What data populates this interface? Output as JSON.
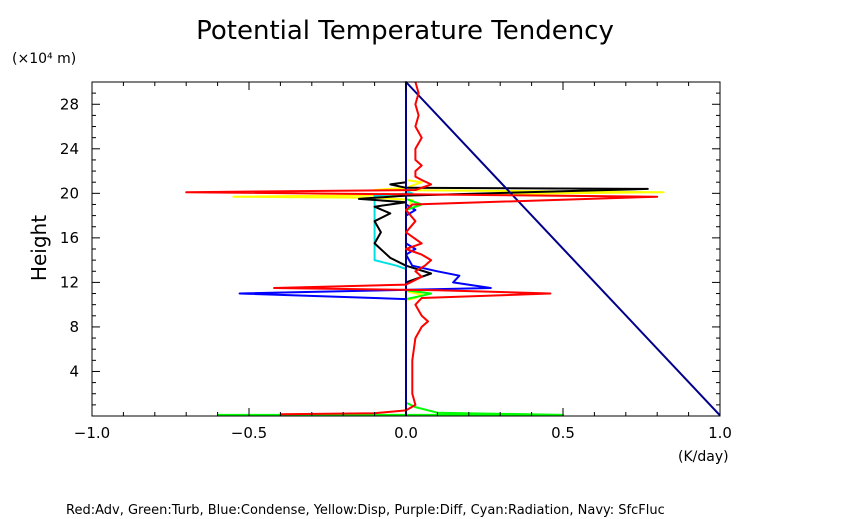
{
  "chart_data": {
    "type": "line",
    "title": "Potential Temperature Tendency",
    "ylabel": "Height",
    "yunit_label": "(×10⁴ m)",
    "xunit_label": "(K/day)",
    "legend_text": "Red:Adv, Green:Turb, Blue:Condense, Yellow:Disp, Purple:Diff, Cyan:Radiation, Navy: SfcFluc",
    "xlim": [
      -1.0,
      1.0
    ],
    "ylim": [
      0,
      30
    ],
    "xticks": [
      {
        "v": -1.0,
        "label": "−1.0"
      },
      {
        "v": -0.5,
        "label": "−0.5"
      },
      {
        "v": 0.0,
        "label": "0.0"
      },
      {
        "v": 0.5,
        "label": "0.5"
      },
      {
        "v": 1.0,
        "label": "1.0"
      }
    ],
    "yticks": [
      {
        "v": 4,
        "label": "4"
      },
      {
        "v": 8,
        "label": "8"
      },
      {
        "v": 12,
        "label": "12"
      },
      {
        "v": 16,
        "label": "16"
      },
      {
        "v": 20,
        "label": "20"
      },
      {
        "v": 24,
        "label": "24"
      },
      {
        "v": 28,
        "label": "28"
      }
    ],
    "grid": false,
    "series": [
      {
        "color": "#ffff00",
        "points": [
          [
            0.0,
            0
          ],
          [
            0.0,
            10.4
          ],
          [
            0.03,
            10.6
          ],
          [
            0.05,
            10.9
          ],
          [
            0.0,
            11.2
          ],
          [
            0.0,
            18.5
          ],
          [
            0.02,
            19.4
          ],
          [
            -0.1,
            19.6
          ],
          [
            -0.55,
            19.7
          ],
          [
            0.82,
            20.1
          ],
          [
            -0.1,
            20.3
          ],
          [
            0.0,
            20.5
          ],
          [
            0.05,
            21.0
          ],
          [
            0.0,
            21.2
          ],
          [
            0.0,
            30
          ]
        ]
      },
      {
        "color": "#00e0e0",
        "points": [
          [
            0.0,
            0
          ],
          [
            0.0,
            13.2
          ],
          [
            -0.03,
            13.5
          ],
          [
            -0.1,
            14.0
          ],
          [
            -0.1,
            19.8
          ],
          [
            0.02,
            20.0
          ],
          [
            0.0,
            20.2
          ],
          [
            0.0,
            30
          ]
        ]
      },
      {
        "color": "#000000",
        "points": [
          [
            0.0,
            0
          ],
          [
            0.0,
            12.0
          ],
          [
            0.05,
            12.5
          ],
          [
            0.08,
            12.8
          ],
          [
            0.0,
            13.5
          ],
          [
            -0.05,
            14.2
          ],
          [
            -0.1,
            15.5
          ],
          [
            -0.08,
            16.5
          ],
          [
            -0.1,
            17.5
          ],
          [
            -0.05,
            18.2
          ],
          [
            -0.1,
            18.8
          ],
          [
            0.0,
            19.2
          ],
          [
            -0.15,
            19.5
          ],
          [
            0.0,
            19.8
          ],
          [
            0.77,
            20.4
          ],
          [
            0.0,
            20.5
          ],
          [
            -0.05,
            20.8
          ],
          [
            0.0,
            21.0
          ],
          [
            0.0,
            30
          ]
        ]
      },
      {
        "color": "#0000ff",
        "points": [
          [
            0.0,
            0
          ],
          [
            0.0,
            10.5
          ],
          [
            -0.53,
            11.0
          ],
          [
            0.27,
            11.5
          ],
          [
            0.15,
            12.0
          ],
          [
            0.17,
            12.6
          ],
          [
            0.1,
            13.0
          ],
          [
            0.02,
            13.5
          ],
          [
            0.0,
            14.5
          ],
          [
            0.03,
            15.0
          ],
          [
            0.0,
            15.5
          ],
          [
            0.0,
            18.0
          ],
          [
            0.03,
            18.5
          ],
          [
            0.0,
            19.0
          ],
          [
            0.0,
            30
          ]
        ]
      },
      {
        "color": "#00ff00",
        "points": [
          [
            -0.6,
            0.1
          ],
          [
            0.5,
            0.1
          ],
          [
            0.1,
            0.3
          ],
          [
            0.03,
            0.8
          ],
          [
            0.0,
            1.2
          ],
          [
            0.0,
            10.5
          ],
          [
            0.05,
            10.8
          ],
          [
            0.08,
            11.0
          ],
          [
            0.0,
            11.3
          ],
          [
            0.0,
            18.5
          ],
          [
            0.05,
            19.0
          ],
          [
            0.0,
            19.5
          ],
          [
            0.0,
            30
          ]
        ]
      },
      {
        "color": "#00008b",
        "points": [
          [
            0.0,
            0
          ],
          [
            0.0,
            30
          ],
          [
            1.0,
            0.05
          ]
        ]
      },
      {
        "color": "#ff0000",
        "points": [
          [
            -0.4,
            0.15
          ],
          [
            -0.1,
            0.25
          ],
          [
            0.0,
            0.5
          ],
          [
            0.03,
            1.0
          ],
          [
            0.02,
            2.0
          ],
          [
            0.02,
            3.0
          ],
          [
            0.02,
            5.0
          ],
          [
            0.03,
            7.0
          ],
          [
            0.05,
            8.0
          ],
          [
            0.07,
            8.5
          ],
          [
            0.05,
            9.0
          ],
          [
            0.03,
            10.0
          ],
          [
            0.05,
            10.6
          ],
          [
            0.46,
            11.0
          ],
          [
            0.1,
            11.3
          ],
          [
            -0.42,
            11.5
          ],
          [
            0.0,
            11.8
          ],
          [
            0.05,
            12.5
          ],
          [
            0.03,
            13.0
          ],
          [
            0.06,
            13.5
          ],
          [
            0.08,
            14.0
          ],
          [
            0.05,
            14.5
          ],
          [
            0.0,
            15.0
          ],
          [
            0.05,
            15.5
          ],
          [
            0.0,
            16.5
          ],
          [
            0.03,
            17.5
          ],
          [
            0.0,
            18.5
          ],
          [
            0.02,
            19.0
          ],
          [
            0.8,
            19.7
          ],
          [
            -0.7,
            20.1
          ],
          [
            0.03,
            20.3
          ],
          [
            0.08,
            20.8
          ],
          [
            0.05,
            21.2
          ],
          [
            0.03,
            21.5
          ],
          [
            0.03,
            22.0
          ],
          [
            0.05,
            22.5
          ],
          [
            0.03,
            23.0
          ],
          [
            0.03,
            24.0
          ],
          [
            0.05,
            25.0
          ],
          [
            0.03,
            26.0
          ],
          [
            0.04,
            27.0
          ],
          [
            0.03,
            28.0
          ],
          [
            0.04,
            29.0
          ],
          [
            0.03,
            30.0
          ]
        ]
      }
    ]
  }
}
